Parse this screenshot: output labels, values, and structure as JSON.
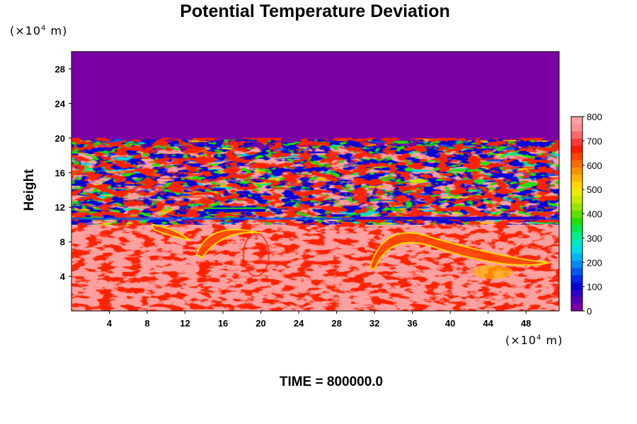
{
  "chart_data": {
    "type": "heatmap",
    "title": "Potential Temperature Deviation",
    "ylabel": "Height",
    "y_unit": "(×10⁴ m)",
    "x_unit": "(×10⁴ m)",
    "footer": "TIME = 800000.0",
    "xlim": [
      0,
      51.5
    ],
    "ylim": [
      0,
      30
    ],
    "x_ticks": [
      "4",
      "8",
      "12",
      "16",
      "20",
      "24",
      "28",
      "32",
      "36",
      "40",
      "44",
      "48"
    ],
    "y_ticks": [
      "4",
      "8",
      "12",
      "16",
      "20",
      "24",
      "28"
    ],
    "colorbar": {
      "range": [
        0,
        800
      ],
      "tick_labels": [
        "800",
        "700",
        "600",
        "500",
        "400",
        "300",
        "200",
        "100",
        "0"
      ],
      "colors": [
        "#7a00a4",
        "#5500b8",
        "#2e00c8",
        "#0000d8",
        "#0028e6",
        "#0058f0",
        "#0088f6",
        "#00b4f8",
        "#00d8e8",
        "#00e8c0",
        "#00ee8a",
        "#00ea50",
        "#22e000",
        "#60e000",
        "#98e400",
        "#c8e800",
        "#ecec00",
        "#ffd800",
        "#ffb400",
        "#ff9000",
        "#ff6a00",
        "#ff4400",
        "#ff1a00",
        "#ff3838",
        "#ff6868",
        "#ff9090",
        "#ffa0a0"
      ]
    },
    "regions": [
      {
        "description": "upper layer",
        "y_range": [
          19.5,
          30
        ],
        "value": 0
      },
      {
        "description": "lower layer",
        "y_range": [
          0,
          10
        ],
        "value": 800
      }
    ]
  }
}
